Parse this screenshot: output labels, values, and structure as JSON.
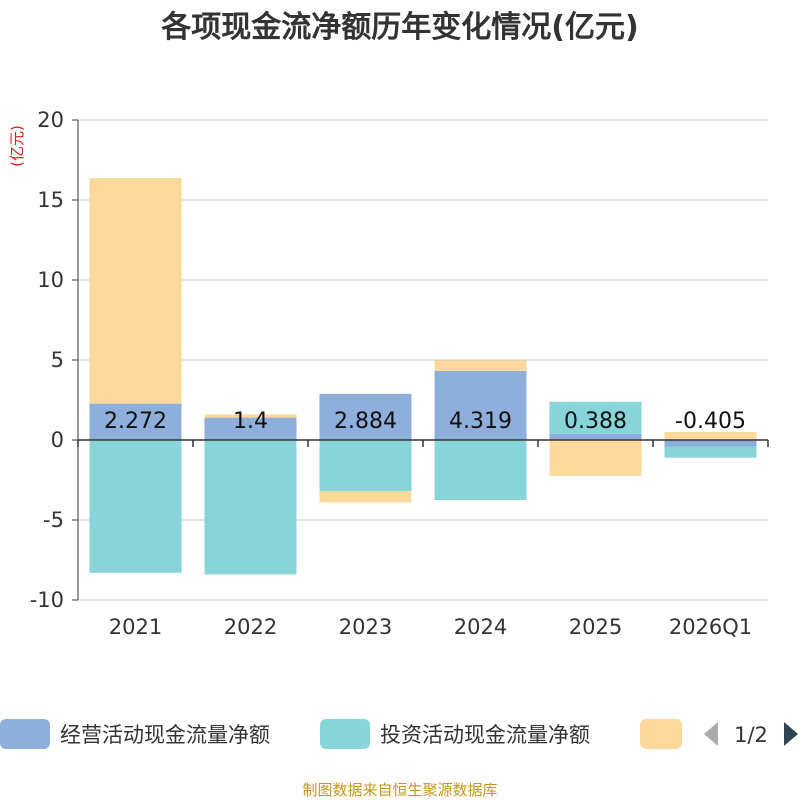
{
  "chart_data": {
    "type": "bar",
    "stacked": true,
    "title": "各项现金流净额历年变化情况(亿元)",
    "ylabel": "(亿元)",
    "xlabel": "",
    "ylim": [
      -10,
      20
    ],
    "yticks": [
      -10,
      -5,
      0,
      5,
      10,
      15,
      20
    ],
    "categories": [
      "2021",
      "2022",
      "2023",
      "2024",
      "2025",
      "2026Q1"
    ],
    "series": [
      {
        "name": "经营活动现金流量净额",
        "color": "#8eaedb",
        "values": [
          2.272,
          1.4,
          2.884,
          4.319,
          0.388,
          -0.405
        ]
      },
      {
        "name": "投资活动现金流量净额",
        "color": "#87d4d9",
        "values": [
          -8.3,
          -8.4,
          -3.2,
          -3.75,
          2.0,
          -0.7
        ]
      },
      {
        "name": "",
        "color": "#fdd89b",
        "values": [
          14.1,
          0.2,
          -0.7,
          0.65,
          -2.25,
          0.5
        ]
      }
    ],
    "data_labels": [
      "2.272",
      "1.4",
      "2.884",
      "4.319",
      "0.388",
      "-0.405"
    ],
    "legend_position": "bottom",
    "grid": true
  },
  "legend": {
    "page": "1/2"
  },
  "source": "制图数据来自恒生聚源数据库"
}
